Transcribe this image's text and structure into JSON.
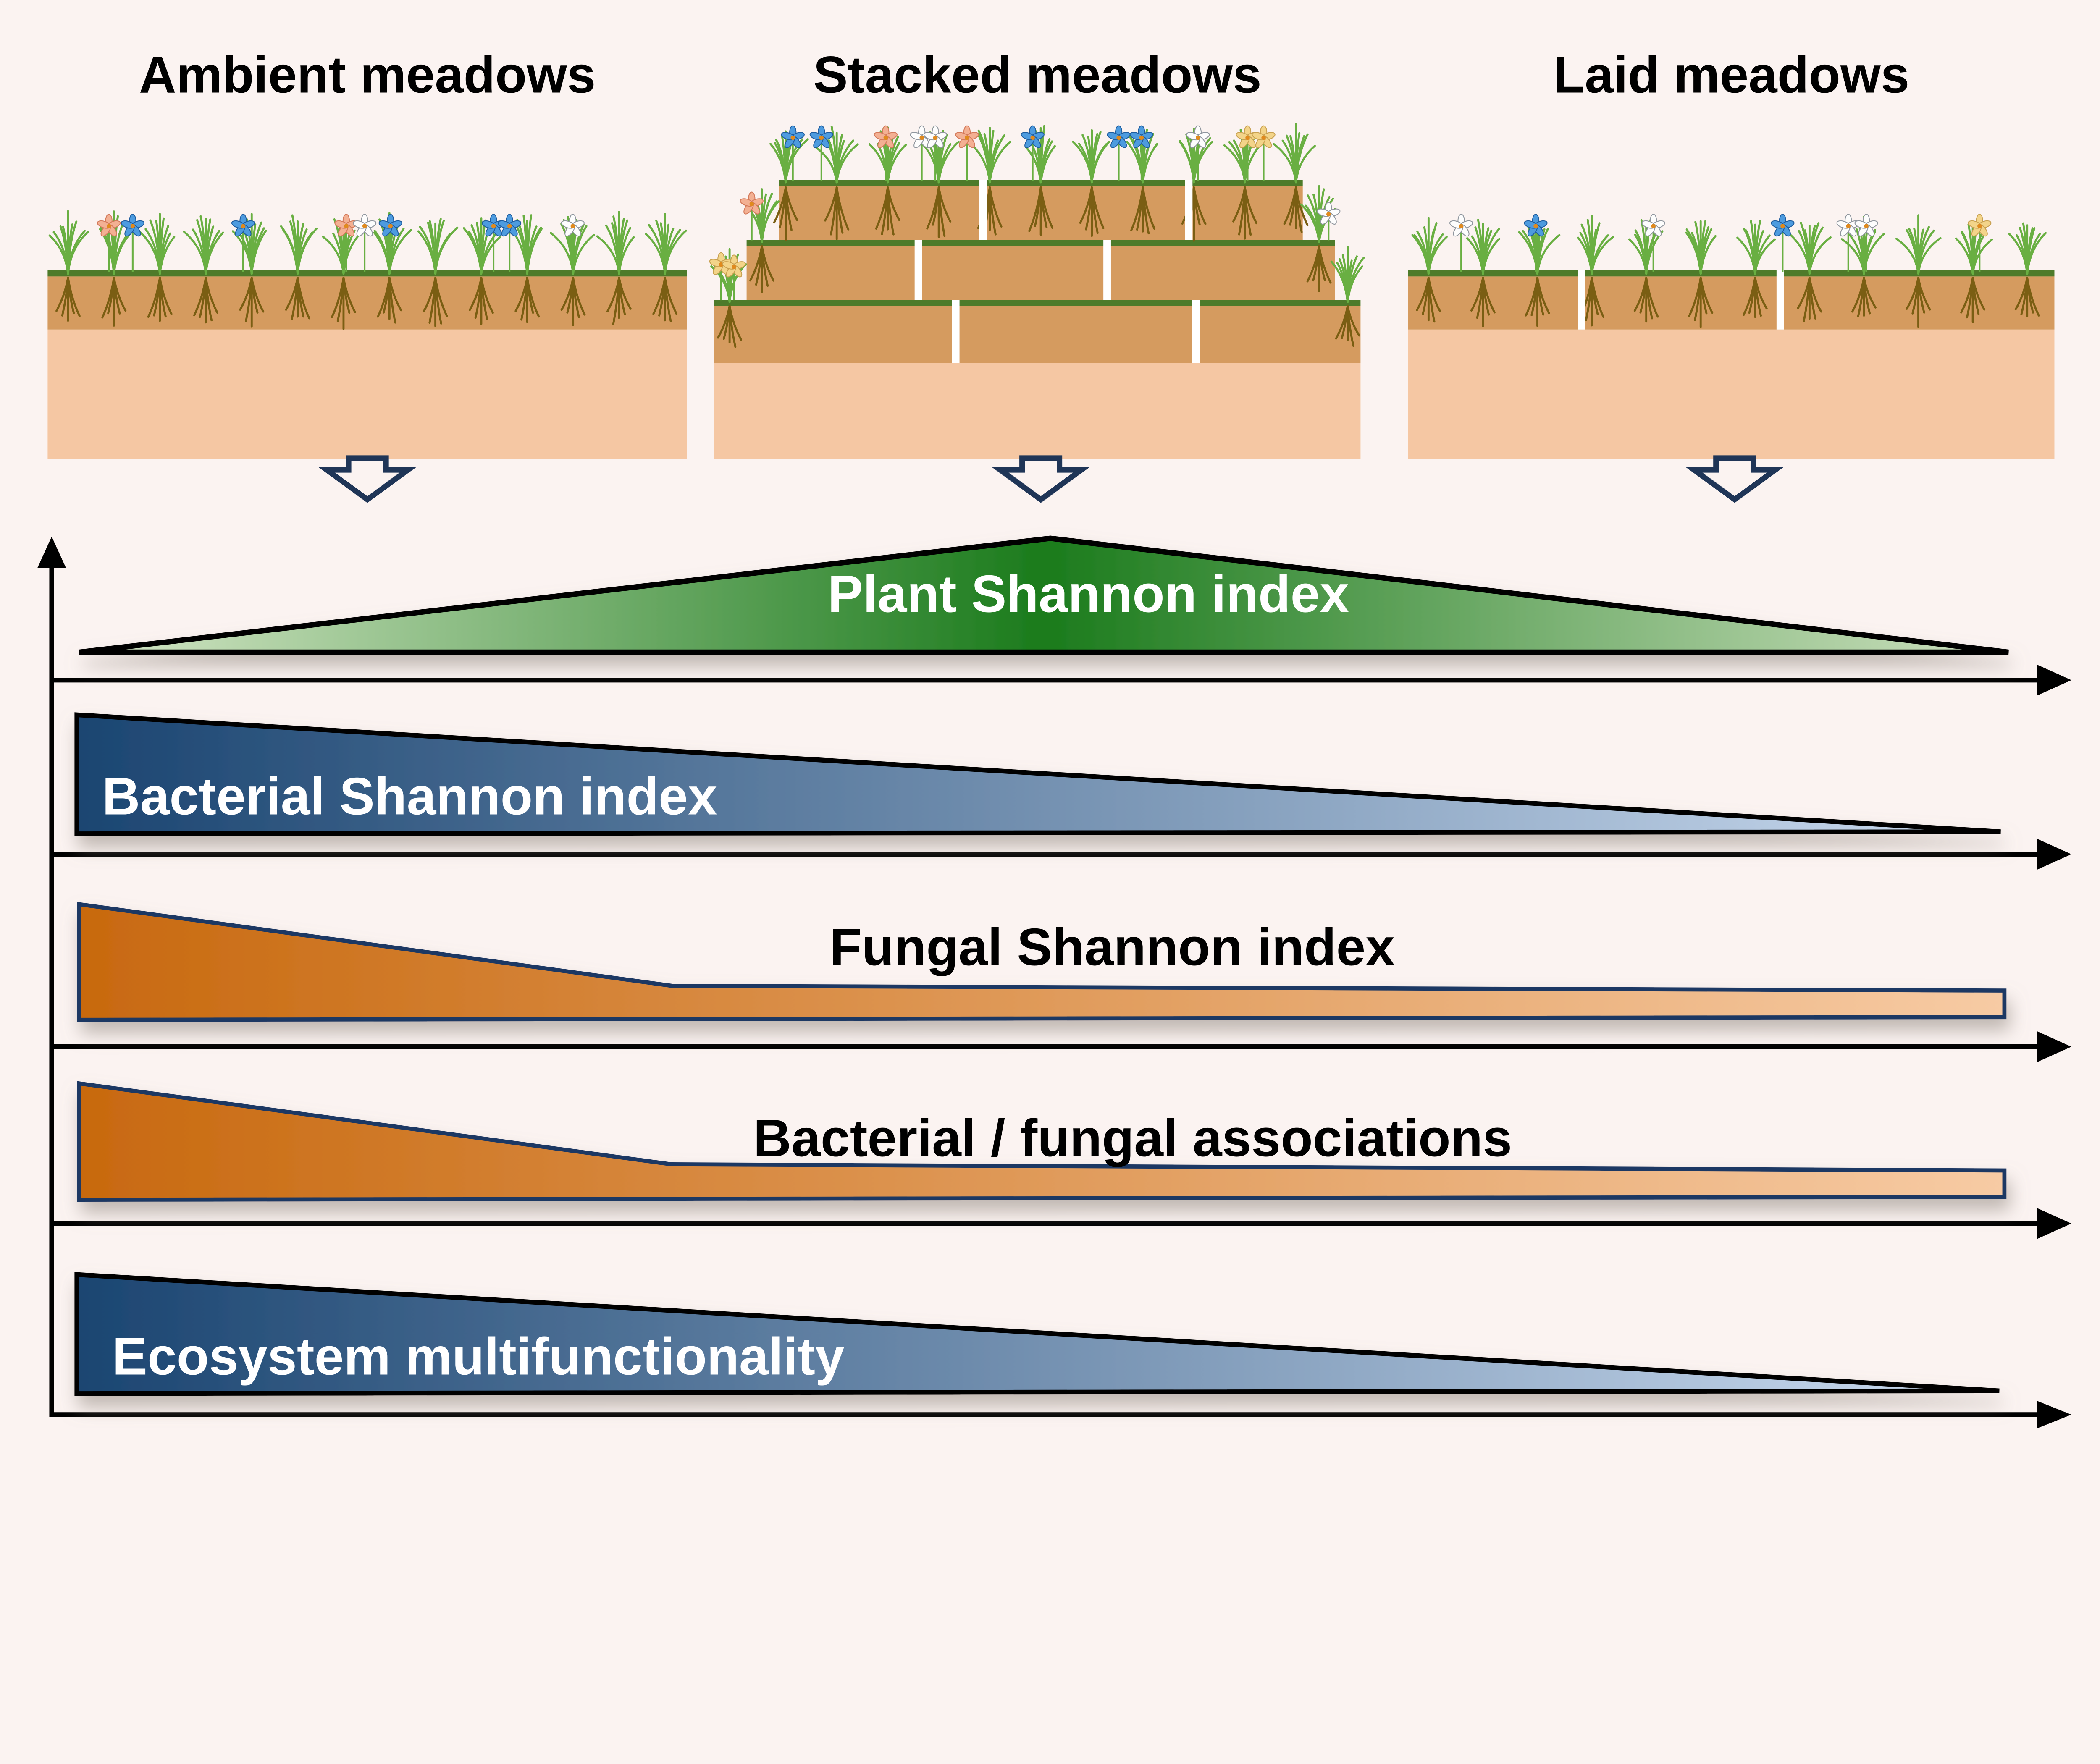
{
  "figure": {
    "background": "#FBF3F1",
    "kind": "conceptual trend diagram"
  },
  "panels": {
    "items": [
      {
        "id": "ambient",
        "title": "Ambient meadows",
        "turf_layers": 1,
        "turf_gaps": 0
      },
      {
        "id": "stacked",
        "title": "Stacked meadows",
        "turf_layers": 3,
        "turf_gaps": 2
      },
      {
        "id": "laid",
        "title": "Laid meadows",
        "turf_layers": 1,
        "turf_gaps": 2
      }
    ]
  },
  "meadow_style": {
    "grass": "#69AF42",
    "turf_strip": "#4E7B2A",
    "topsoil": "#D59B5F",
    "subsoil": "#F5C7A3",
    "roots": "#7A5E13",
    "gap": "#FFFFFF",
    "flower_palette": {
      "blue": {
        "fill": "#4D9BDF",
        "stroke": "#1E5C9E"
      },
      "white": {
        "fill": "#FDFDFD",
        "stroke": "#8F969E"
      },
      "salmon": {
        "fill": "#F3B093",
        "stroke": "#D3795A"
      },
      "yellow": {
        "fill": "#F3D489",
        "stroke": "#C8A050"
      },
      "center": "#E08A1E"
    }
  },
  "down_arrow": {
    "color": "#1F3557"
  },
  "axes": {
    "color": "#000000"
  },
  "bands": {
    "items": [
      {
        "label": "Plant Shannon index",
        "shape": "peak-at-center",
        "trend": "low in ambient, highest in stacked, low in laid",
        "text_color": "#FFFFFF",
        "outline": "#000000",
        "gradient": [
          "#D7E8C9",
          "#1B7B1C",
          "#CFE2C1"
        ]
      },
      {
        "label": "Bacterial Shannon index",
        "shape": "declining-wedge",
        "trend": "decreases from ambient to laid",
        "text_color": "#FFFFFF",
        "outline": "#000000",
        "gradient": [
          "#1B4571",
          "#CCDCF0"
        ]
      },
      {
        "label": "Fungal Shannon index",
        "shape": "decline-then-plateau",
        "trend": "decreases steeply, then stays low and flat",
        "text_color": "#000000",
        "outline": "#1F3864",
        "gradient": [
          "#C8690F",
          "#F7CBA4"
        ]
      },
      {
        "label": "Bacterial / fungal associations",
        "shape": "decline-then-plateau",
        "trend": "decreases steeply, then stays low and flat",
        "text_color": "#000000",
        "outline": "#1F3864",
        "gradient": [
          "#C8690F",
          "#F7CBA4"
        ]
      },
      {
        "label": "Ecosystem multifunctionality",
        "shape": "declining-wedge",
        "trend": "decreases from ambient to laid",
        "text_color": "#FFFFFF",
        "outline": "#000000",
        "gradient": [
          "#1B4571",
          "#CCDCF0"
        ]
      }
    ]
  }
}
